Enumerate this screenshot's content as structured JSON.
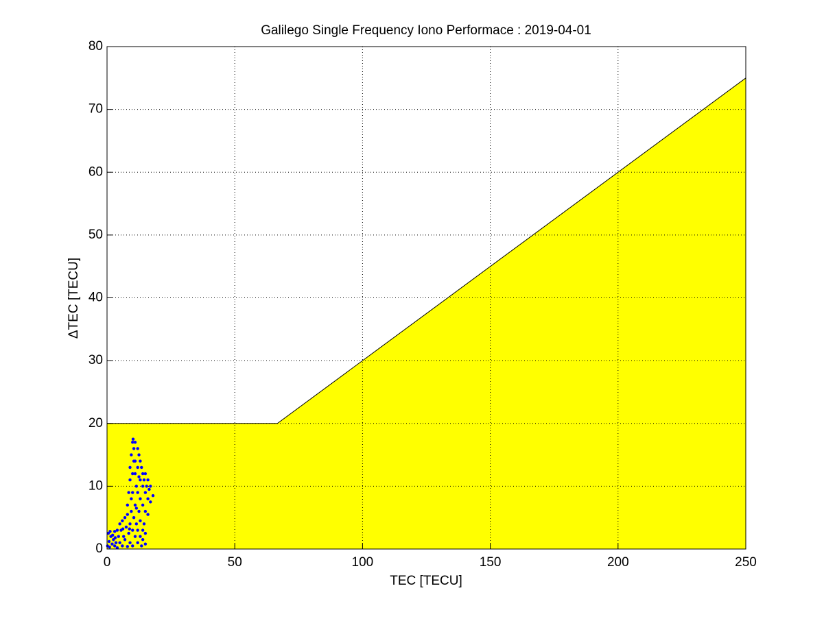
{
  "chart_data": {
    "type": "scatter",
    "title": "Galilego Single Frequency Iono Performace : 2019-04-01",
    "x_label": "TEC [TECU]",
    "y_label": "ΔTEC [TECU]",
    "xlim": [
      0,
      250
    ],
    "ylim": [
      0,
      80
    ],
    "xticks": [
      0,
      50,
      100,
      150,
      200,
      250
    ],
    "yticks": [
      0,
      10,
      20,
      30,
      40,
      50,
      60,
      70,
      80
    ],
    "grid": true,
    "series": [
      {
        "type": "area",
        "color": "#ffff00",
        "x": [
          0,
          66.67,
          250
        ],
        "values": [
          20,
          20,
          75
        ]
      },
      {
        "type": "scatter",
        "color": "#0000ff",
        "x": [
          0.5,
          0.8,
          1,
          1.5,
          2,
          2.5,
          3,
          3,
          3.5,
          4,
          4,
          4.5,
          5,
          5,
          5.5,
          6,
          6,
          6.5,
          7,
          7,
          7.5,
          8,
          8,
          8.5,
          9,
          9,
          9.5,
          10,
          10,
          10.5,
          11,
          11,
          11.5,
          12,
          12,
          12.5,
          13,
          13,
          13.5,
          14,
          14,
          15,
          15,
          14.5,
          0.2,
          1.2,
          2.2,
          3.2,
          6.2,
          8.8,
          8,
          8.5,
          9,
          9,
          9.5,
          10,
          10.2,
          10.5,
          11,
          11,
          11,
          11.5,
          12,
          12,
          12,
          12.5,
          13,
          13,
          13,
          13.5,
          14,
          14,
          14,
          14.5,
          15,
          15,
          15.5,
          16,
          16,
          16.5,
          17,
          17,
          18,
          10,
          10,
          10.5,
          9.5,
          12.5,
          11.5,
          15,
          16
        ],
        "values": [
          2.5,
          1.2,
          0.3,
          2,
          0.8,
          1.5,
          0.5,
          2.8,
          1,
          3,
          0.2,
          2,
          4,
          1,
          3,
          0.5,
          4.5,
          2,
          5,
          1.5,
          3.5,
          0.4,
          5.5,
          2.5,
          4,
          1,
          6,
          3,
          0.5,
          5,
          2,
          7,
          4,
          1,
          3,
          6,
          2,
          4.5,
          0.5,
          3,
          1.5,
          2.5,
          0.8,
          4,
          0.5,
          2.8,
          2.2,
          1.8,
          3.2,
          3.2,
          7,
          9,
          11,
          13,
          15,
          17,
          17.5,
          16,
          17,
          14,
          12,
          10,
          16,
          13,
          9,
          15,
          14,
          11,
          8,
          13,
          12,
          10,
          7,
          11,
          12,
          9,
          10,
          11,
          8,
          9.5,
          10,
          7.5,
          8.5,
          12,
          9,
          14,
          8,
          11.5,
          6.5,
          6,
          5.5
        ]
      }
    ]
  }
}
